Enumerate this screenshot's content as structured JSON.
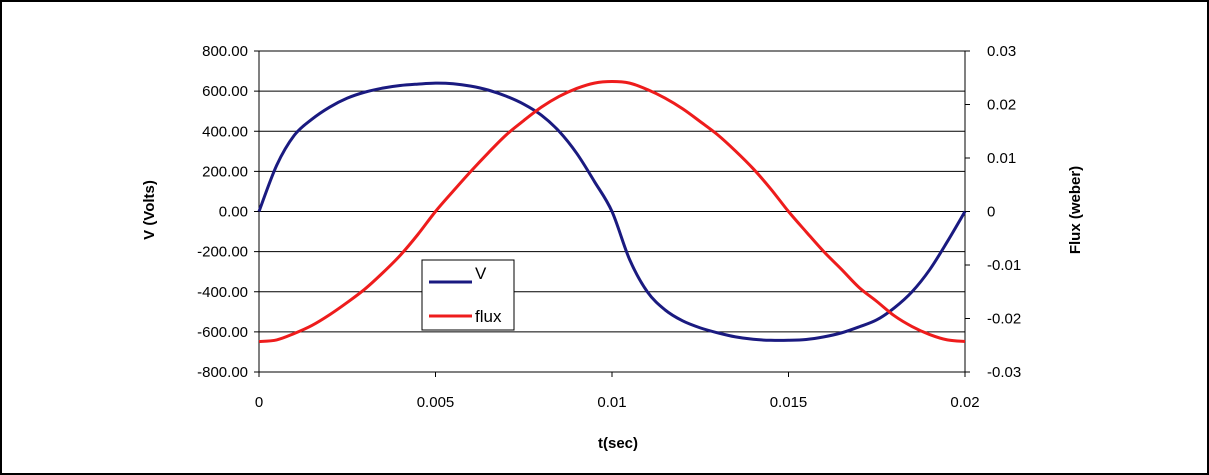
{
  "chart_data": {
    "type": "line",
    "title": "",
    "xlabel": "t(sec)",
    "ylabel": "V (Volts)",
    "y2label": "Flux (weber)",
    "xlim": [
      0,
      0.02
    ],
    "ylim": [
      -800,
      800
    ],
    "y2lim": [
      -0.03,
      0.03
    ],
    "x_ticks": [
      "0",
      "0.005",
      "0.01",
      "0.015",
      "0.02"
    ],
    "y_ticks": [
      "800.00",
      "600.00",
      "400.00",
      "200.00",
      "0.00",
      "-200.00",
      "-400.00",
      "-600.00",
      "-800.00"
    ],
    "y2_ticks": [
      "0.03",
      "0.02",
      "0.01",
      "0",
      "-0.01",
      "-0.02",
      "-0.03"
    ],
    "grid": "horizontal",
    "legend_position": "inside-left-lower",
    "series": [
      {
        "name": "V",
        "axis": "left",
        "color": "#1a1a80",
        "x": [
          0,
          0.0005,
          0.001,
          0.0015,
          0.002,
          0.0025,
          0.003,
          0.0035,
          0.004,
          0.0045,
          0.005,
          0.0055,
          0.006,
          0.0065,
          0.007,
          0.0075,
          0.008,
          0.0085,
          0.009,
          0.0095,
          0.01,
          0.0105,
          0.011,
          0.0115,
          0.012,
          0.0125,
          0.013,
          0.0135,
          0.014,
          0.0145,
          0.015,
          0.0155,
          0.016,
          0.0165,
          0.017,
          0.0175,
          0.018,
          0.0185,
          0.019,
          0.0195,
          0.02
        ],
        "values": [
          0,
          230,
          380,
          460,
          520,
          565,
          595,
          615,
          628,
          635,
          640,
          637,
          625,
          605,
          575,
          535,
          480,
          400,
          290,
          150,
          0,
          -240,
          -400,
          -490,
          -545,
          -580,
          -605,
          -625,
          -637,
          -642,
          -642,
          -638,
          -625,
          -605,
          -575,
          -540,
          -480,
          -400,
          -290,
          -150,
          0
        ]
      },
      {
        "name": "flux",
        "axis": "right",
        "color": "#ee1c1c",
        "x": [
          0,
          0.0005,
          0.001,
          0.0015,
          0.002,
          0.0025,
          0.003,
          0.0035,
          0.004,
          0.0045,
          0.005,
          0.0055,
          0.006,
          0.0065,
          0.007,
          0.0075,
          0.008,
          0.0085,
          0.009,
          0.0095,
          0.01,
          0.0105,
          0.011,
          0.0115,
          0.012,
          0.0125,
          0.013,
          0.0135,
          0.014,
          0.0145,
          0.015,
          0.0155,
          0.016,
          0.0165,
          0.017,
          0.0175,
          0.018,
          0.0185,
          0.019,
          0.0195,
          0.02
        ],
        "values": [
          -0.0243,
          -0.024,
          -0.0228,
          -0.0213,
          -0.0193,
          -0.017,
          -0.0145,
          -0.0115,
          -0.0082,
          -0.0043,
          0,
          0.0038,
          0.0075,
          0.011,
          0.0143,
          0.017,
          0.0195,
          0.0215,
          0.023,
          0.024,
          0.0243,
          0.024,
          0.0228,
          0.0212,
          0.0192,
          0.0168,
          0.0143,
          0.0113,
          0.008,
          0.0042,
          0,
          -0.0038,
          -0.0075,
          -0.0108,
          -0.0142,
          -0.0168,
          -0.0195,
          -0.0215,
          -0.023,
          -0.024,
          -0.0243
        ]
      }
    ]
  }
}
